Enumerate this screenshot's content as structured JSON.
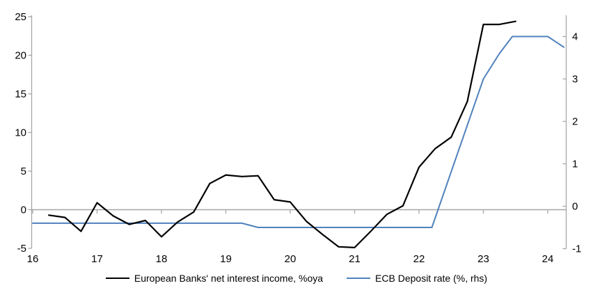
{
  "chart_data": {
    "type": "line",
    "title": "",
    "x_axis": {
      "min": 16,
      "max": 24.3,
      "ticks": [
        16,
        17,
        18,
        19,
        20,
        21,
        22,
        23,
        24
      ]
    },
    "left_axis": {
      "label": "",
      "min": -5,
      "max": 25,
      "ticks": [
        25,
        20,
        15,
        10,
        5,
        0,
        -5
      ]
    },
    "right_axis": {
      "label": "",
      "min": -1,
      "max": 4.5,
      "ticks": [
        4,
        3,
        2,
        1,
        0,
        -1
      ]
    },
    "grid": "zero-line-only",
    "legend_position": "bottom",
    "axis_color": "#a6a6a6",
    "series": [
      {
        "name": "European Banks' net interest income, %oya",
        "axis": "left",
        "color": "#000000",
        "x_start": 16.25,
        "x_step": 0.25,
        "values": [
          -0.7,
          -1.0,
          -2.8,
          0.9,
          -0.8,
          -1.9,
          -1.4,
          -3.5,
          -1.6,
          -0.3,
          3.4,
          4.5,
          4.3,
          4.4,
          1.3,
          1.0,
          -1.5,
          -3.2,
          -4.8,
          -4.9,
          -2.8,
          -0.6,
          0.5,
          5.5,
          7.9,
          9.4,
          14.0,
          24.0,
          24.0,
          24.4
        ]
      },
      {
        "name": "ECB Deposit rate (%, rhs)",
        "axis": "right",
        "color": "#4f81bd",
        "points": [
          [
            16.0,
            -0.4
          ],
          [
            19.25,
            -0.4
          ],
          [
            19.5,
            -0.5
          ],
          [
            22.2,
            -0.5
          ],
          [
            23.0,
            3.0
          ],
          [
            23.25,
            3.6
          ],
          [
            23.45,
            4.0
          ],
          [
            24.0,
            4.0
          ],
          [
            24.25,
            3.75
          ]
        ]
      }
    ]
  }
}
